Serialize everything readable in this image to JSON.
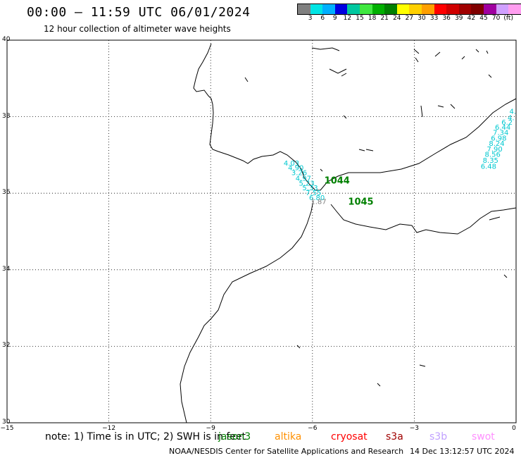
{
  "title": "00:00 – 11:59 UTC 06/01/2024",
  "subtitle": "12 hour collection of altimeter wave heights",
  "colorbar": {
    "colors": [
      "#808080",
      "#00e5e5",
      "#00b0ff",
      "#0000e0",
      "#00c8a0",
      "#40e840",
      "#00b000",
      "#008000",
      "#ffff00",
      "#ffd000",
      "#ffa000",
      "#ff0000",
      "#d00000",
      "#a00000",
      "#800000",
      "#a000a0",
      "#d0a0ff",
      "#ff9ef0",
      "#000000"
    ],
    "labels": [
      "3",
      "6",
      "9",
      "12",
      "15",
      "18",
      "21",
      "24",
      "27",
      "30",
      "33",
      "36",
      "39",
      "42",
      "45",
      "70",
      "(ft)"
    ]
  },
  "axes": {
    "lat_labels": [
      "40",
      "38",
      "36",
      "34",
      "32",
      "30"
    ],
    "lon_labels": [
      "−15",
      "−12",
      "−9",
      "−6",
      "−3",
      "0"
    ]
  },
  "observations": {
    "jason_track_labels": [
      {
        "text": "4.03",
        "lon": -6.85,
        "lat": 36.72,
        "color": "#00c8d0"
      },
      {
        "text": "4.90",
        "lon": -6.72,
        "lat": 36.6,
        "color": "#00c8d0"
      },
      {
        "text": "3.26",
        "lon": -6.62,
        "lat": 36.47,
        "color": "#00c8d0"
      },
      {
        "text": "4.97",
        "lon": -6.5,
        "lat": 36.33,
        "color": "#00c8d0"
      },
      {
        "text": "5.23",
        "lon": -6.4,
        "lat": 36.2,
        "color": "#00c8d0"
      },
      {
        "text": "5.33",
        "lon": -6.3,
        "lat": 36.08,
        "color": "#00c8d0"
      },
      {
        "text": "7.55",
        "lon": -6.2,
        "lat": 35.95,
        "color": "#00c8d0"
      },
      {
        "text": "6.80",
        "lon": -6.1,
        "lat": 35.82,
        "color": "#00c8d0"
      },
      {
        "text": "1.87",
        "lon": -6.05,
        "lat": 35.72,
        "color": "#808080"
      }
    ],
    "east_track_labels": [
      {
        "text": "4.",
        "lon": 0.0,
        "lat": 38.08,
        "color": "#00c8d0"
      },
      {
        "text": "4.",
        "lon": -0.05,
        "lat": 37.91,
        "color": "#00c8d0"
      },
      {
        "text": "6.2",
        "lon": -0.1,
        "lat": 37.79,
        "color": "#00c8d0"
      },
      {
        "text": "6.44",
        "lon": -0.16,
        "lat": 37.66,
        "color": "#00c8d0"
      },
      {
        "text": "7.34",
        "lon": -0.22,
        "lat": 37.52,
        "color": "#00c8d0"
      },
      {
        "text": "6.98",
        "lon": -0.28,
        "lat": 37.38,
        "color": "#00c8d0"
      },
      {
        "text": "8.24",
        "lon": -0.34,
        "lat": 37.24,
        "color": "#00c8d0"
      },
      {
        "text": "7.90",
        "lon": -0.4,
        "lat": 37.09,
        "color": "#00c8d0"
      },
      {
        "text": "8.56",
        "lon": -0.46,
        "lat": 36.95,
        "color": "#00c8d0"
      },
      {
        "text": "8.35",
        "lon": -0.52,
        "lat": 36.8,
        "color": "#00c8d0"
      },
      {
        "text": "6.48",
        "lon": -0.58,
        "lat": 36.64,
        "color": "#00c8d0"
      }
    ],
    "buoys": [
      {
        "text": "1044",
        "lon": -5.65,
        "lat": 36.25,
        "color": "#008000"
      },
      {
        "text": "1045",
        "lon": -4.95,
        "lat": 35.7,
        "color": "#008000"
      }
    ]
  },
  "note": "note:  1) Time is in UTC;  2) SWH is in feet",
  "satellites": [
    {
      "name": "jason3",
      "color": "#008000"
    },
    {
      "name": "altika",
      "color": "#ff9000"
    },
    {
      "name": "cryosat",
      "color": "#ff0000"
    },
    {
      "name": "s3a",
      "color": "#a00000"
    },
    {
      "name": "s3b",
      "color": "#c0a0ff"
    },
    {
      "name": "swot",
      "color": "#ff90ff"
    }
  ],
  "footer": {
    "credit": "NOAA/NESDIS Center for Satellite Applications and Research",
    "timestamp": "14 Dec 13:12:57 UTC 2024"
  }
}
